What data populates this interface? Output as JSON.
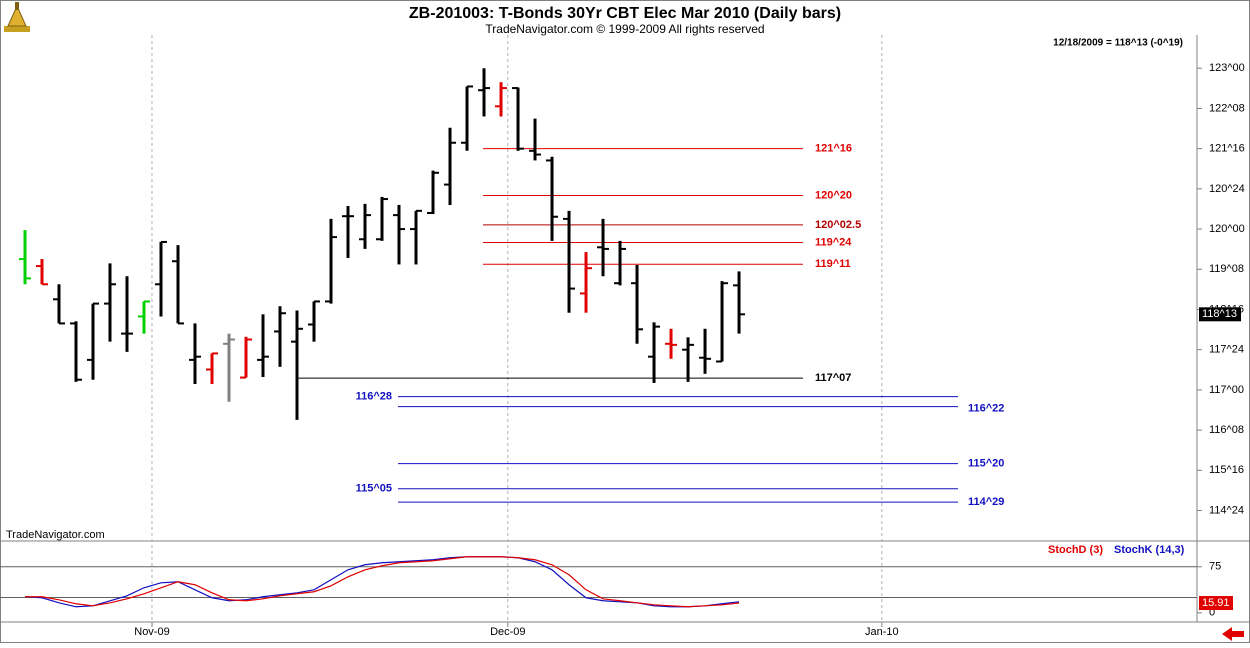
{
  "chart_data": [
    {
      "type": "ohlc",
      "title": "ZB-201003:  T-Bonds 30Yr CBT Elec Mar 2010  (Daily bars)",
      "subtitle": "TradeNavigator.com © 1999-2009 All rights reserved",
      "info": "12/18/2009 = 118^13 (-0^19)",
      "watermark": "TradeNavigator.com",
      "xlim": [
        -1.47,
        68.82
      ],
      "ylim": [
        114.2,
        123.62
      ],
      "yticks": [
        {
          "value": 123,
          "label": "123^00"
        },
        {
          "value": 122.25,
          "label": "122^08"
        },
        {
          "value": 121.5,
          "label": "121^16"
        },
        {
          "value": 120.75,
          "label": "120^24"
        },
        {
          "value": 120,
          "label": "120^00"
        },
        {
          "value": 119.25,
          "label": "119^08"
        },
        {
          "value": 118.5,
          "label": "118^16"
        },
        {
          "value": 117.75,
          "label": "117^24"
        },
        {
          "value": 117,
          "label": "117^00"
        },
        {
          "value": 116.25,
          "label": "116^08"
        },
        {
          "value": 115.5,
          "label": "115^16"
        },
        {
          "value": 114.75,
          "label": "114^24"
        }
      ],
      "last_price": {
        "value": 118.41,
        "label": "118^13"
      },
      "open": [
        119.44,
        119.31,
        118.69,
        118.24,
        117.56,
        118.61,
        118.05,
        118.37,
        118.97,
        119.4,
        117.56,
        117.38,
        117.86,
        117.23,
        117.56,
        118.09,
        117.9,
        118.22,
        118.65,
        120.24,
        119.81,
        119.81,
        120.26,
        120.0,
        120.3,
        120.83,
        121.61,
        122.59,
        122.29,
        122.63,
        121.46,
        121.28,
        120.19,
        118.8,
        119.66,
        118.99,
        118.99,
        117.62,
        117.86,
        117.75,
        117.6,
        117.53,
        118.95
      ],
      "high": [
        119.98,
        119.44,
        118.97,
        118.28,
        118.61,
        119.36,
        119.12,
        118.65,
        119.76,
        119.7,
        118.24,
        117.68,
        118.05,
        117.99,
        118.41,
        118.56,
        118.48,
        118.65,
        120.19,
        120.43,
        120.47,
        120.6,
        120.45,
        120.34,
        121.09,
        121.89,
        122.66,
        123.0,
        122.74,
        122.64,
        122.06,
        121.35,
        120.34,
        119.57,
        120.19,
        119.78,
        119.33,
        118.26,
        118.14,
        117.98,
        118.14,
        119.03,
        119.21
      ],
      "low": [
        118.97,
        118.97,
        118.24,
        117.15,
        117.19,
        117.9,
        117.71,
        118.05,
        118.37,
        118.24,
        117.11,
        117.11,
        116.78,
        117.23,
        117.24,
        117.43,
        116.44,
        117.9,
        118.61,
        119.46,
        119.63,
        119.78,
        119.34,
        119.34,
        120.28,
        120.45,
        121.46,
        122.1,
        122.1,
        121.46,
        121.28,
        119.78,
        118.44,
        118.44,
        119.12,
        118.95,
        117.86,
        117.13,
        117.58,
        117.15,
        117.3,
        117.53,
        118.05
      ],
      "close": [
        119.08,
        118.97,
        118.24,
        117.19,
        118.61,
        118.97,
        118.05,
        118.65,
        119.76,
        118.24,
        117.62,
        117.68,
        117.94,
        117.94,
        117.62,
        118.43,
        118.14,
        118.65,
        119.85,
        120.24,
        120.26,
        120.56,
        120.0,
        120.34,
        121.05,
        121.61,
        122.66,
        122.63,
        122.63,
        121.5,
        121.39,
        120.23,
        118.89,
        119.27,
        119.63,
        119.63,
        118.13,
        118.18,
        117.84,
        117.84,
        117.58,
        118.99,
        118.41
      ],
      "colors": [
        "#00d000",
        "#e00000",
        "#000000",
        "#000000",
        "#000000",
        "#000000",
        "#000000",
        "#00d000",
        "#000000",
        "#000000",
        "#000000",
        "#e00000",
        "#808080",
        "#e00000",
        "#000000",
        "#000000",
        "#000000",
        "#000000",
        "#000000",
        "#000000",
        "#000000",
        "#000000",
        "#000000",
        "#000000",
        "#000000",
        "#000000",
        "#000000",
        "#000000",
        "#e00000",
        "#000000",
        "#000000",
        "#000000",
        "#000000",
        "#e00000",
        "#000000",
        "#000000",
        "#000000",
        "#000000",
        "#e00000",
        "#000000",
        "#000000",
        "#000000",
        "#000000"
      ],
      "levels": [
        {
          "value": 121.5,
          "label": "121^16",
          "color": "#e00000"
        },
        {
          "value": 120.625,
          "label": "120^20",
          "color": "#e00000"
        },
        {
          "value": 120.078,
          "label": "120^02.5",
          "color": "#b00000"
        },
        {
          "value": 119.75,
          "label": "119^24",
          "color": "#e00000"
        },
        {
          "value": 119.344,
          "label": "119^11",
          "color": "#e00000"
        },
        {
          "value": 117.219,
          "label": "117^07",
          "color": "#000000"
        },
        {
          "value": 116.875,
          "label": "116^28",
          "color": "#1010c0"
        },
        {
          "value": 116.6875,
          "label": "116^22",
          "color": "#1010c0"
        },
        {
          "value": 115.625,
          "label": "115^20",
          "color": "#1010c0"
        },
        {
          "value": 115.156,
          "label": "115^05",
          "color": "#1010c0"
        },
        {
          "value": 114.906,
          "label": "114^29",
          "color": "#1010c0"
        }
      ]
    },
    {
      "type": "line",
      "xlim": [
        -1.47,
        68.82
      ],
      "xticks": [
        {
          "value": 7.47,
          "label": "Nov-09"
        },
        {
          "value": 28.4,
          "label": "Dec-09"
        },
        {
          "value": 50.4,
          "label": "Jan-10"
        }
      ],
      "ylim": [
        -15,
        117
      ],
      "yticks": [
        0,
        75
      ],
      "hlines": [
        25,
        75
      ],
      "series": [
        {
          "name": "StochD (3)",
          "color": "#e00000",
          "values": [
            26.1,
            26.1,
            21.2,
            14.7,
            11.4,
            16.3,
            22.8,
            31.0,
            40.8,
            50.6,
            45.7,
            32.6,
            21.2,
            19.6,
            22.8,
            27.7,
            31.0,
            34.3,
            44.0,
            58.7,
            70.1,
            76.7,
            81.6,
            83.2,
            84.8,
            88.1,
            91.3,
            91.3,
            91.3,
            89.7,
            86.4,
            78.3,
            62.0,
            37.5,
            22.8,
            19.6,
            16.3,
            13.0,
            11.4,
            9.8,
            11.4,
            13.0,
            15.91
          ]
        },
        {
          "name": "StochK (14,3)",
          "color": "#1010c0",
          "values": [
            26.1,
            24.5,
            16.3,
            9.8,
            11.4,
            19.6,
            27.7,
            40.8,
            48.9,
            50.6,
            37.5,
            24.5,
            19.6,
            21.2,
            26.1,
            29.4,
            32.6,
            37.5,
            53.8,
            70.1,
            78.3,
            81.6,
            83.2,
            84.8,
            86.4,
            89.7,
            91.3,
            91.3,
            91.3,
            89.7,
            83.2,
            70.1,
            45.7,
            24.5,
            19.6,
            17.9,
            16.3,
            11.4,
            9.8,
            9.8,
            11.4,
            14.7,
            17.9
          ]
        }
      ]
    }
  ]
}
